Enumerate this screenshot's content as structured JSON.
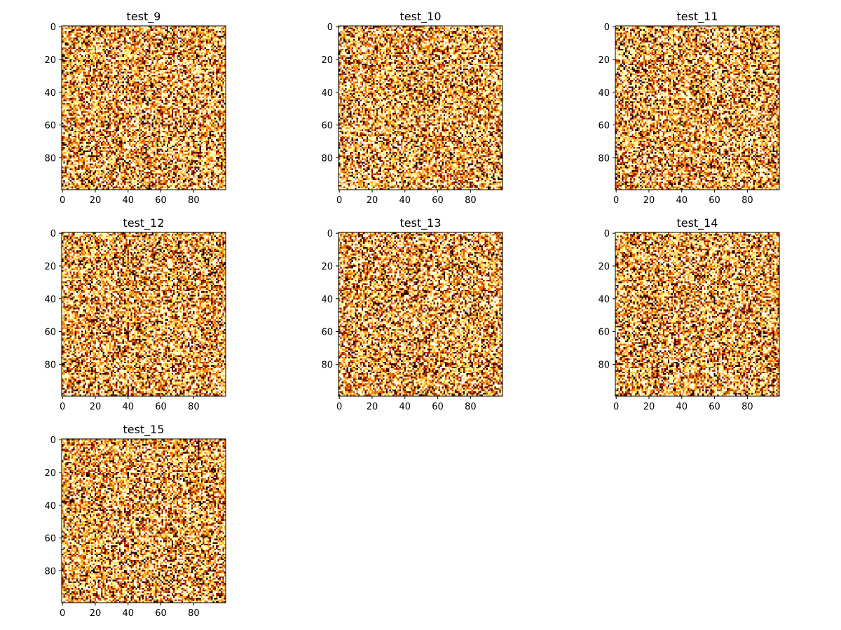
{
  "chart_data": [
    {
      "type": "heatmap",
      "title": "test_9",
      "xlim": [
        0,
        99
      ],
      "ylim": [
        99,
        0
      ],
      "xticks": [
        "0",
        "20",
        "40",
        "60",
        "80"
      ],
      "yticks": [
        "0",
        "20",
        "40",
        "60",
        "80"
      ],
      "grid": false,
      "colormap": "afmhot",
      "shape": [
        100,
        100
      ],
      "seed": 9
    },
    {
      "type": "heatmap",
      "title": "test_10",
      "xlim": [
        0,
        99
      ],
      "ylim": [
        99,
        0
      ],
      "xticks": [
        "0",
        "20",
        "40",
        "60",
        "80"
      ],
      "yticks": [
        "0",
        "20",
        "40",
        "60",
        "80"
      ],
      "grid": false,
      "colormap": "afmhot",
      "shape": [
        100,
        100
      ],
      "seed": 10
    },
    {
      "type": "heatmap",
      "title": "test_11",
      "xlim": [
        0,
        99
      ],
      "ylim": [
        99,
        0
      ],
      "xticks": [
        "0",
        "20",
        "40",
        "60",
        "80"
      ],
      "yticks": [
        "0",
        "20",
        "40",
        "60",
        "80"
      ],
      "grid": false,
      "colormap": "afmhot",
      "shape": [
        100,
        100
      ],
      "seed": 11
    },
    {
      "type": "heatmap",
      "title": "test_12",
      "xlim": [
        0,
        99
      ],
      "ylim": [
        99,
        0
      ],
      "xticks": [
        "0",
        "20",
        "40",
        "60",
        "80"
      ],
      "yticks": [
        "0",
        "20",
        "40",
        "60",
        "80"
      ],
      "grid": false,
      "colormap": "afmhot",
      "shape": [
        100,
        100
      ],
      "seed": 12
    },
    {
      "type": "heatmap",
      "title": "test_13",
      "xlim": [
        0,
        99
      ],
      "ylim": [
        99,
        0
      ],
      "xticks": [
        "0",
        "20",
        "40",
        "60",
        "80"
      ],
      "yticks": [
        "0",
        "20",
        "40",
        "60",
        "80"
      ],
      "grid": false,
      "colormap": "afmhot",
      "shape": [
        100,
        100
      ],
      "seed": 13
    },
    {
      "type": "heatmap",
      "title": "test_14",
      "xlim": [
        0,
        99
      ],
      "ylim": [
        99,
        0
      ],
      "xticks": [
        "0",
        "20",
        "40",
        "60",
        "80"
      ],
      "yticks": [
        "0",
        "20",
        "40",
        "60",
        "80"
      ],
      "grid": false,
      "colormap": "afmhot",
      "shape": [
        100,
        100
      ],
      "seed": 14
    },
    {
      "type": "heatmap",
      "title": "test_15",
      "xlim": [
        0,
        99
      ],
      "ylim": [
        99,
        0
      ],
      "xticks": [
        "0",
        "20",
        "40",
        "60",
        "80"
      ],
      "yticks": [
        "0",
        "20",
        "40",
        "60",
        "80"
      ],
      "grid": false,
      "colormap": "afmhot",
      "shape": [
        100,
        100
      ],
      "seed": 15
    }
  ]
}
